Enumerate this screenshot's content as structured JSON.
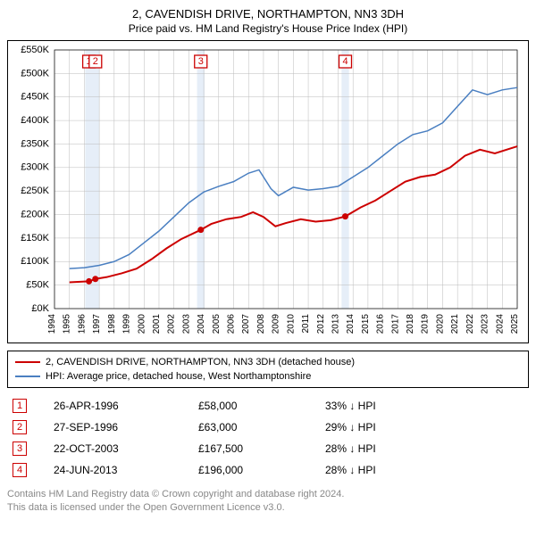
{
  "title1": "2, CAVENDISH DRIVE, NORTHAMPTON, NN3 3DH",
  "title2": "Price paid vs. HM Land Registry's House Price Index (HPI)",
  "chart": {
    "type": "line",
    "background_color": "#ffffff",
    "grid_color": "#bbbbbb",
    "band_color": "#e6eef8",
    "xlim": [
      1994,
      2025
    ],
    "ylim": [
      0,
      550000
    ],
    "ytick_step": 50000,
    "xtick_step": 1,
    "ylabel_prefix": "£",
    "ylabel_suffix": "K",
    "series": [
      {
        "id": "property",
        "label": "2, CAVENDISH DRIVE, NORTHAMPTON, NN3 3DH (detached house)",
        "color": "#cc0000",
        "line_width": 2,
        "points": [
          [
            1995.0,
            56000
          ],
          [
            1996.31,
            58000
          ],
          [
            1996.74,
            63000
          ],
          [
            1997.5,
            67000
          ],
          [
            1998.5,
            75000
          ],
          [
            1999.5,
            85000
          ],
          [
            2000.5,
            105000
          ],
          [
            2001.5,
            128000
          ],
          [
            2002.5,
            148000
          ],
          [
            2003.8,
            167500
          ],
          [
            2004.5,
            180000
          ],
          [
            2005.5,
            190000
          ],
          [
            2006.5,
            195000
          ],
          [
            2007.3,
            205000
          ],
          [
            2008.0,
            195000
          ],
          [
            2008.8,
            175000
          ],
          [
            2009.5,
            182000
          ],
          [
            2010.5,
            190000
          ],
          [
            2011.5,
            185000
          ],
          [
            2012.5,
            188000
          ],
          [
            2013.48,
            196000
          ],
          [
            2014.5,
            215000
          ],
          [
            2015.5,
            230000
          ],
          [
            2016.5,
            250000
          ],
          [
            2017.5,
            270000
          ],
          [
            2018.5,
            280000
          ],
          [
            2019.5,
            285000
          ],
          [
            2020.5,
            300000
          ],
          [
            2021.5,
            325000
          ],
          [
            2022.5,
            338000
          ],
          [
            2023.5,
            330000
          ],
          [
            2024.5,
            340000
          ],
          [
            2025.0,
            345000
          ]
        ]
      },
      {
        "id": "hpi",
        "label": "HPI: Average price, detached house, West Northamptonshire",
        "color": "#4a7fc1",
        "line_width": 1.5,
        "points": [
          [
            1995.0,
            85000
          ],
          [
            1996.0,
            87000
          ],
          [
            1997.0,
            92000
          ],
          [
            1998.0,
            100000
          ],
          [
            1999.0,
            115000
          ],
          [
            2000.0,
            140000
          ],
          [
            2001.0,
            165000
          ],
          [
            2002.0,
            195000
          ],
          [
            2003.0,
            225000
          ],
          [
            2004.0,
            248000
          ],
          [
            2005.0,
            260000
          ],
          [
            2006.0,
            270000
          ],
          [
            2007.0,
            288000
          ],
          [
            2007.7,
            295000
          ],
          [
            2008.5,
            255000
          ],
          [
            2009.0,
            240000
          ],
          [
            2010.0,
            258000
          ],
          [
            2011.0,
            252000
          ],
          [
            2012.0,
            255000
          ],
          [
            2013.0,
            260000
          ],
          [
            2014.0,
            280000
          ],
          [
            2015.0,
            300000
          ],
          [
            2016.0,
            325000
          ],
          [
            2017.0,
            350000
          ],
          [
            2018.0,
            370000
          ],
          [
            2019.0,
            378000
          ],
          [
            2020.0,
            395000
          ],
          [
            2021.0,
            430000
          ],
          [
            2022.0,
            465000
          ],
          [
            2023.0,
            455000
          ],
          [
            2024.0,
            465000
          ],
          [
            2025.0,
            470000
          ]
        ]
      }
    ],
    "event_markers": [
      {
        "n": "1",
        "x": 1996.31,
        "y": 58000
      },
      {
        "n": "2",
        "x": 1996.74,
        "y": 63000
      },
      {
        "n": "3",
        "x": 2003.8,
        "y": 167500
      },
      {
        "n": "4",
        "x": 2013.48,
        "y": 196000
      }
    ]
  },
  "legend": {
    "items": [
      {
        "color": "#cc0000",
        "label": "2, CAVENDISH DRIVE, NORTHAMPTON, NN3 3DH (detached house)"
      },
      {
        "color": "#4a7fc1",
        "label": "HPI: Average price, detached house, West Northamptonshire"
      }
    ]
  },
  "events": [
    {
      "n": "1",
      "date": "26-APR-1996",
      "price": "£58,000",
      "delta": "33% ↓ HPI"
    },
    {
      "n": "2",
      "date": "27-SEP-1996",
      "price": "£63,000",
      "delta": "29% ↓ HPI"
    },
    {
      "n": "3",
      "date": "22-OCT-2003",
      "price": "£167,500",
      "delta": "28% ↓ HPI"
    },
    {
      "n": "4",
      "date": "24-JUN-2013",
      "price": "£196,000",
      "delta": "28% ↓ HPI"
    }
  ],
  "footer": {
    "line1": "Contains HM Land Registry data © Crown copyright and database right 2024.",
    "line2": "This data is licensed under the Open Government Licence v3.0."
  }
}
